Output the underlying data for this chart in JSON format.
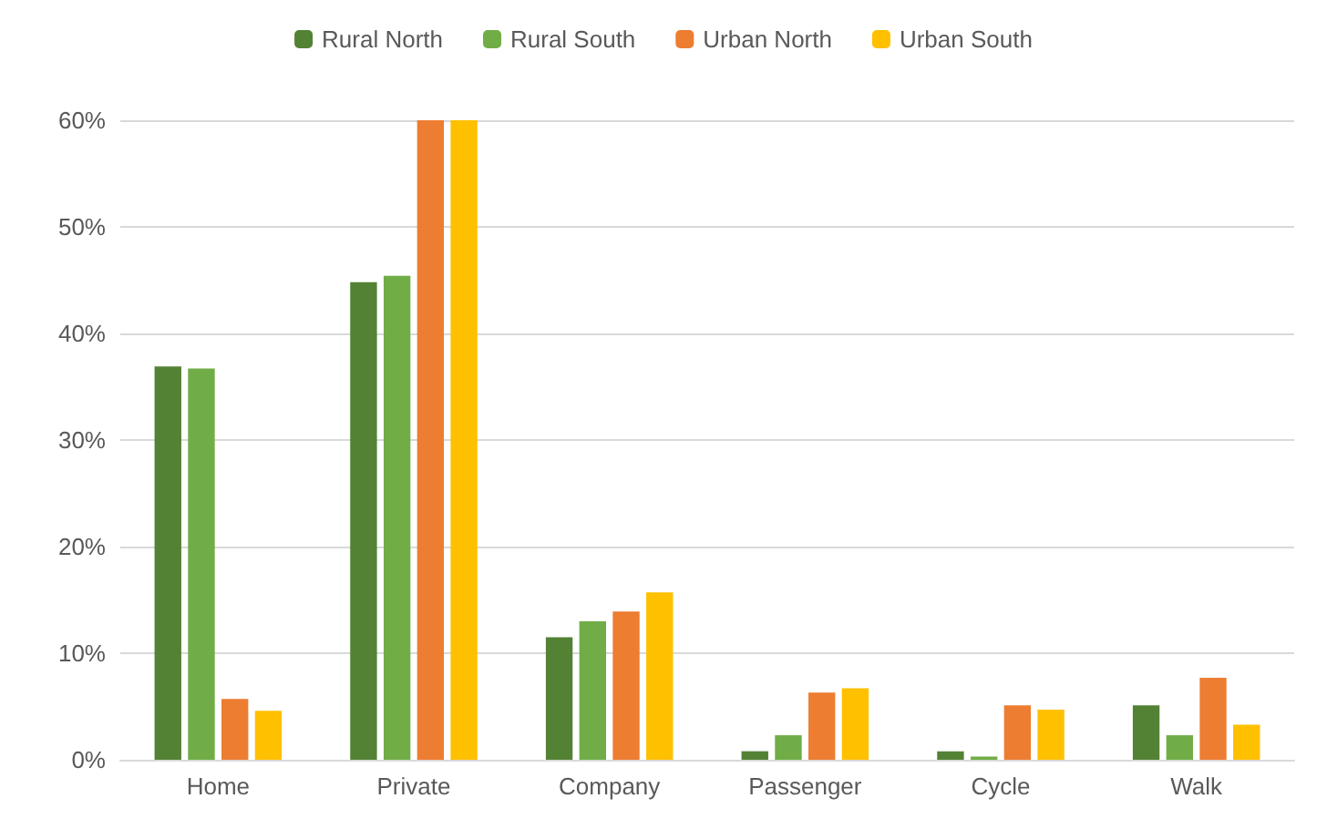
{
  "chart_data": {
    "type": "bar",
    "categories": [
      "Home",
      "Private",
      "Company",
      "Passenger",
      "Cycle",
      "Walk"
    ],
    "series": [
      {
        "name": "Rural North",
        "color": "#548235",
        "values": [
          36.9,
          44.8,
          11.5,
          0.8,
          0.8,
          5.1
        ]
      },
      {
        "name": "Rural South",
        "color": "#70ad47",
        "values": [
          36.7,
          45.4,
          13.0,
          2.3,
          0.3,
          2.3
        ]
      },
      {
        "name": "Urban North",
        "color": "#ed7d31",
        "values": [
          5.7,
          60,
          13.9,
          6.3,
          5.1,
          7.7
        ]
      },
      {
        "name": "Urban South",
        "color": "#ffc000",
        "values": [
          4.6,
          60,
          15.7,
          6.7,
          4.7,
          3.3
        ]
      }
    ],
    "ylim": [
      0,
      60
    ],
    "yticks": [
      {
        "value": 0,
        "label": "0%"
      },
      {
        "value": 10,
        "label": "10%"
      },
      {
        "value": 20,
        "label": "20%"
      },
      {
        "value": 30,
        "label": "30%"
      },
      {
        "value": 40,
        "label": "40%"
      },
      {
        "value": 50,
        "label": "50%"
      },
      {
        "value": 60,
        "label": "60%"
      }
    ],
    "grid": "y",
    "legend": "top"
  }
}
